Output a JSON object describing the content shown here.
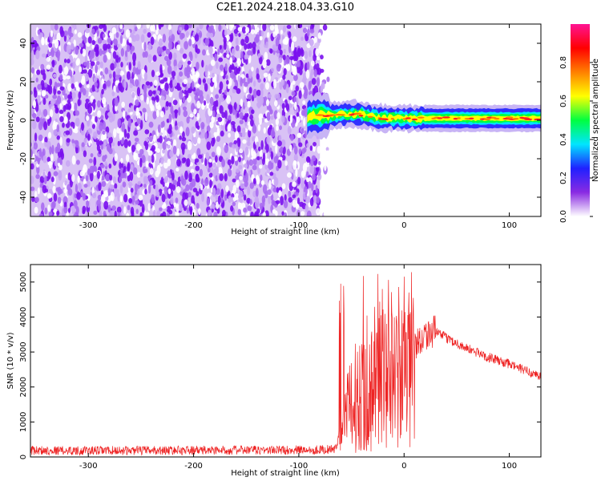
{
  "title": "C2E1.2024.218.04.33.G10",
  "colors": {
    "snr_line": "#ee2222",
    "noise_purple": "#7a10ee",
    "background": "#ffffff"
  },
  "colorbar": {
    "label": "Normalized spectral amplitude",
    "ticks": [
      "0.0",
      "0.2",
      "0.4",
      "0.6",
      "0.8"
    ],
    "tick_values": [
      0.0,
      0.2,
      0.4,
      0.6,
      0.8
    ],
    "range": [
      0,
      1
    ],
    "stops": [
      "#ffffff",
      "#8a2be2",
      "#2020ff",
      "#00e5ff",
      "#00ff40",
      "#ffff00",
      "#ff8000",
      "#ff0000",
      "#ff1493"
    ]
  },
  "chart_data": [
    {
      "type": "heatmap",
      "xlabel": "Height of straight line (km)",
      "ylabel": "Frequency (Hz)",
      "xlim": [
        -355,
        130
      ],
      "ylim": [
        -50,
        50
      ],
      "xticks": [
        -300,
        -200,
        -100,
        0,
        100
      ],
      "xtick_labels": [
        "-300",
        "-200",
        "-100",
        "0",
        "100"
      ],
      "yticks": [
        -40,
        -20,
        0,
        20,
        40
      ],
      "ytick_labels": [
        "-40",
        "-20",
        "0",
        "20",
        "40"
      ],
      "noise_region_x": [
        -355,
        -80
      ],
      "signal_center_hz": [
        [
          -90,
          2
        ],
        [
          -60,
          3
        ],
        [
          -40,
          3
        ],
        [
          -20,
          1
        ],
        [
          0,
          1
        ],
        [
          20,
          1
        ],
        [
          60,
          1
        ],
        [
          100,
          1
        ],
        [
          130,
          1
        ]
      ]
    },
    {
      "type": "line",
      "xlabel": "Height of straight line (km)",
      "ylabel": "SNR (10 * v/v)",
      "xlim": [
        -355,
        130
      ],
      "ylim": [
        0,
        5500
      ],
      "xticks": [
        -300,
        -200,
        -100,
        0,
        100
      ],
      "xtick_labels": [
        "-300",
        "-200",
        "-100",
        "0",
        "100"
      ],
      "yticks": [
        0,
        1000,
        2000,
        3000,
        4000,
        5000
      ],
      "ytick_labels": [
        "0",
        "1000",
        "2000",
        "3000",
        "4000",
        "5000"
      ],
      "series": [
        {
          "x": [
            -355,
            -300,
            -200,
            -100,
            -65,
            -60,
            -50,
            -40,
            -30,
            -20,
            -10,
            0,
            10,
            20,
            30,
            40,
            60,
            80,
            100,
            130
          ],
          "y": [
            190,
            180,
            190,
            200,
            220,
            900,
            1800,
            2300,
            2300,
            2700,
            2600,
            2700,
            3200,
            3500,
            3600,
            3400,
            3100,
            2850,
            2650,
            2300
          ]
        }
      ]
    }
  ]
}
